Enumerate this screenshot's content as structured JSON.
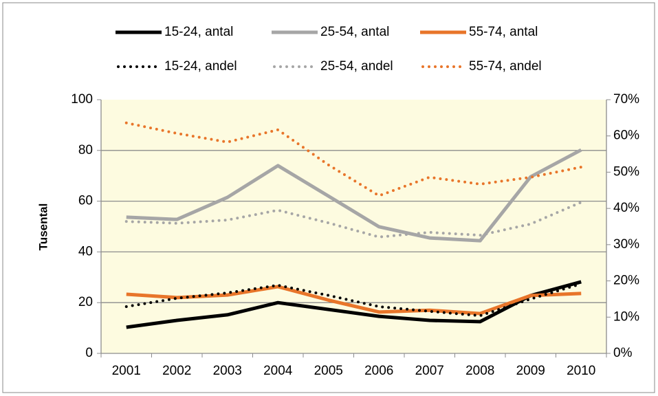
{
  "chart_data": {
    "type": "line",
    "y_label": "Tusental",
    "categories": [
      "2001",
      "2002",
      "2003",
      "2004",
      "2005",
      "2006",
      "2007",
      "2008",
      "2009",
      "2010"
    ],
    "ylim": [
      0,
      100
    ],
    "yticks": [
      0,
      20,
      40,
      60,
      80,
      100
    ],
    "y2lim": [
      0,
      70
    ],
    "y2ticks": [
      {
        "value": 0,
        "label": "0%"
      },
      {
        "value": 10,
        "label": "10%"
      },
      {
        "value": 20,
        "label": "20%"
      },
      {
        "value": 30,
        "label": "30%"
      },
      {
        "value": 40,
        "label": "40%"
      },
      {
        "value": 50,
        "label": "50%"
      },
      {
        "value": 60,
        "label": "60%"
      },
      {
        "value": 70,
        "label": "70%"
      }
    ],
    "grid": true,
    "legend_position": "top",
    "series": [
      {
        "name": "15-24, antal",
        "color": "#000000",
        "line_style": "solid",
        "values": [
          10.3,
          13,
          15.2,
          20,
          17.3,
          14.6,
          13,
          12.5,
          22.8,
          28.2
        ]
      },
      {
        "name": "25-54, antal",
        "color": "#a6a6a6",
        "line_style": "solid",
        "values": [
          53.7,
          52.8,
          61.5,
          74,
          62,
          49.9,
          45.5,
          44.4,
          69.6,
          80.2
        ]
      },
      {
        "name": "55-74, antal",
        "color": "#e8752a",
        "line_style": "solid",
        "values": [
          23.3,
          22,
          23,
          26.3,
          21,
          16.3,
          17,
          15.7,
          22.8,
          23.6
        ]
      },
      {
        "name": "15-24, andel",
        "color": "#000000",
        "line_style": "dotted",
        "axis": "y2",
        "values": [
          12.9,
          15.2,
          16.7,
          18.8,
          16,
          12.9,
          11.6,
          10.4,
          15,
          19.2
        ]
      },
      {
        "name": "25-54, andel",
        "color": "#a6a6a6",
        "line_style": "dotted",
        "axis": "y2",
        "values": [
          36.4,
          35.9,
          36.8,
          39.5,
          36,
          32.1,
          33.4,
          32.6,
          35.7,
          41.7
        ]
      },
      {
        "name": "55-74, andel",
        "color": "#e8752a",
        "line_style": "dotted",
        "axis": "y2",
        "values": [
          63.6,
          60.7,
          58.3,
          61.7,
          52,
          43.5,
          48.6,
          46.7,
          48.6,
          51.4
        ]
      }
    ]
  }
}
